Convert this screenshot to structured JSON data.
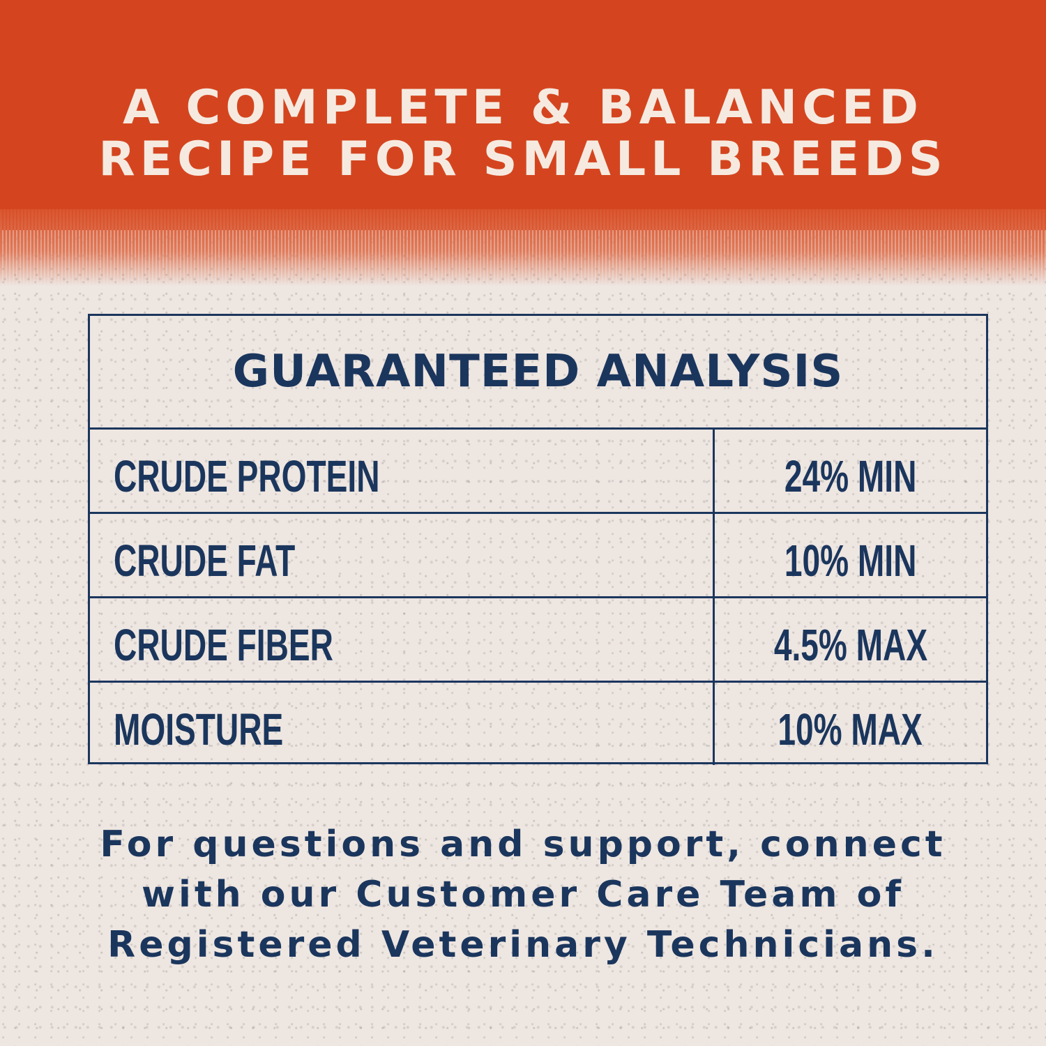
{
  "colors": {
    "orange": "#d4451f",
    "navy": "#1b365d",
    "cream": "#eee6e1"
  },
  "headline": {
    "line1": "A COMPLETE & BALANCED",
    "line2": "RECIPE FOR SMALL BREEDS"
  },
  "table": {
    "title": "GUARANTEED ANALYSIS",
    "rows": [
      {
        "label": "CRUDE PROTEIN",
        "value": "24% MIN"
      },
      {
        "label": "CRUDE FAT",
        "value": "10% MIN"
      },
      {
        "label": "CRUDE FIBER",
        "value": "4.5% MAX"
      },
      {
        "label": "MOISTURE",
        "value": "10% MAX"
      }
    ]
  },
  "footer": {
    "line1": "For questions and support, connect",
    "line2": "with our Customer Care Team of",
    "line3": "Registered Veterinary Technicians."
  }
}
